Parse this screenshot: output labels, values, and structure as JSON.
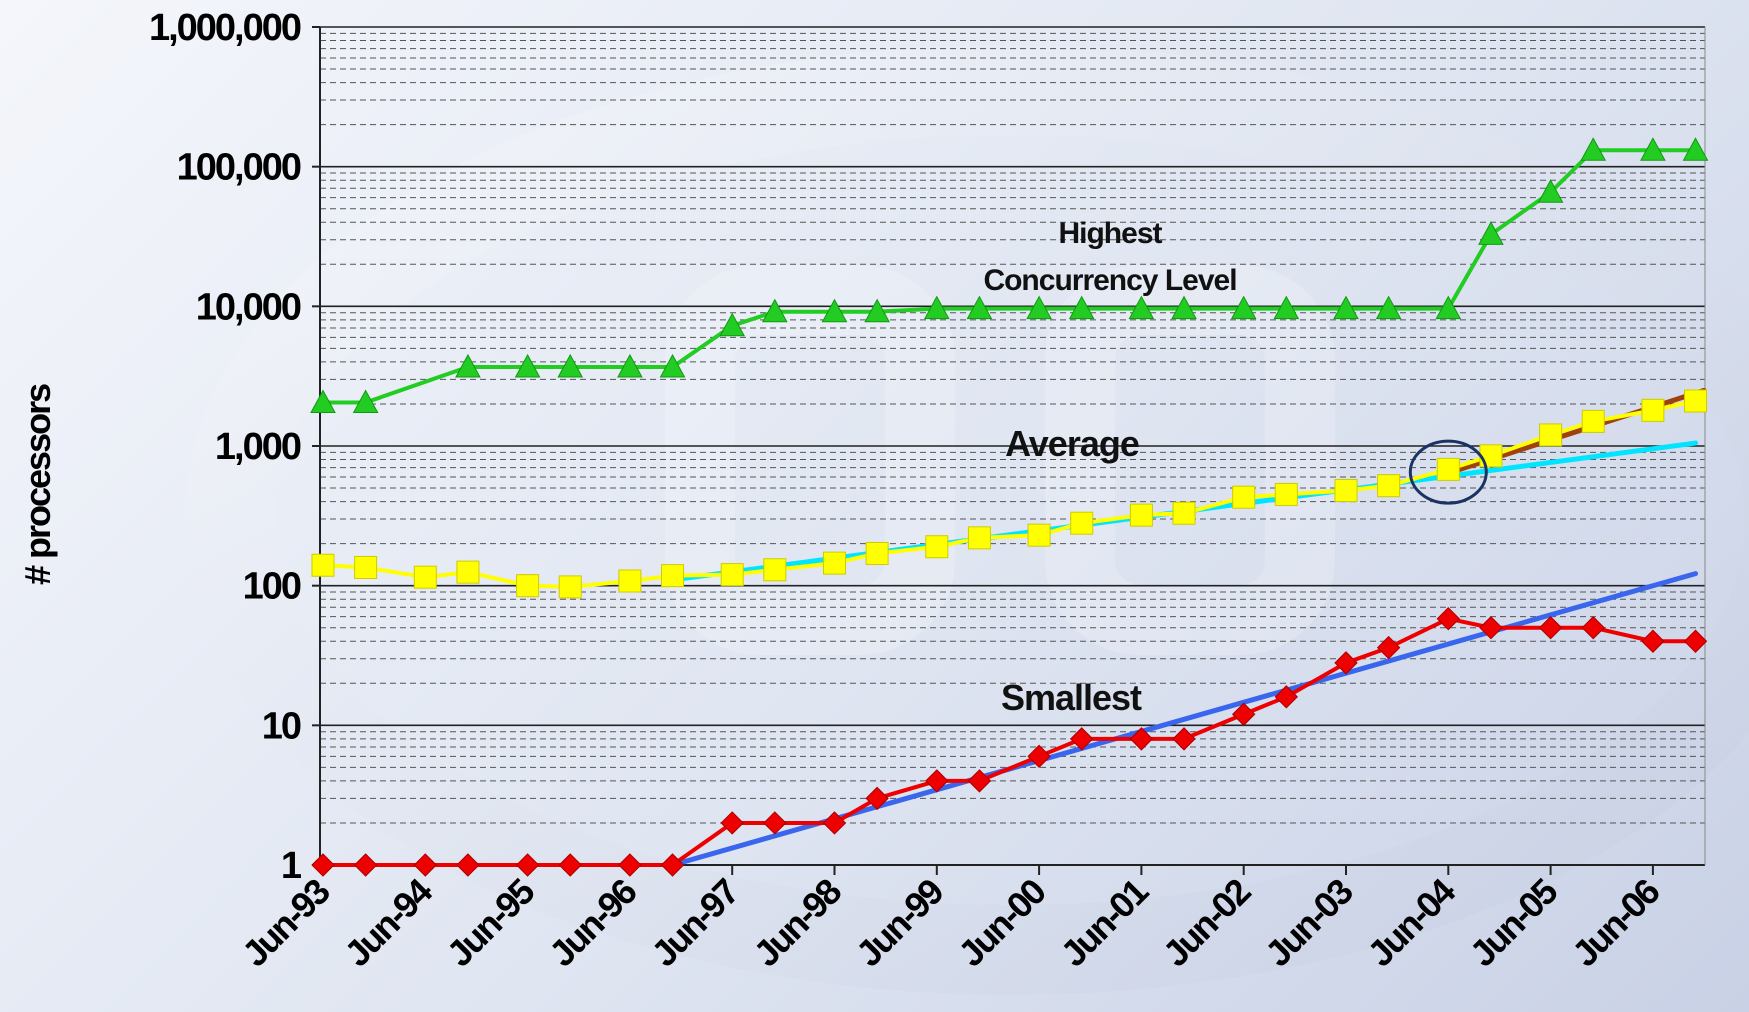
{
  "chart_data": {
    "type": "line",
    "ylabel": "# processors",
    "yscale": "log",
    "ylim": [
      1,
      1000000
    ],
    "xlim": [
      "Jun-93",
      "Dec-06"
    ],
    "yticks": [
      "1",
      "10",
      "100",
      "1,000",
      "10,000",
      "100,000",
      "1,000,000"
    ],
    "xticks": [
      "Jun-93",
      "Jun-94",
      "Jun-95",
      "Jun-96",
      "Jun-97",
      "Jun-98",
      "Jun-99",
      "Jun-00",
      "Jun-01",
      "Jun-02",
      "Jun-03",
      "Jun-04",
      "Jun-05",
      "Jun-06"
    ],
    "grid": "major and minor horizontal",
    "annotations": [
      "Highest",
      "Concurrency Level",
      "Average",
      "Smallest"
    ],
    "series": [
      {
        "label": "Highest Concurrency Level",
        "color": "#22cc22",
        "marker": "triangle",
        "x": [
          "Jun-93",
          "Nov-93",
          "Nov-94",
          "Jun-95",
          "Nov-95",
          "Jun-96",
          "Nov-96",
          "Jun-97",
          "Nov-97",
          "Jun-98",
          "Nov-98",
          "Jun-99",
          "Nov-99",
          "Jun-00",
          "Nov-00",
          "Jun-01",
          "Nov-01",
          "Jun-02",
          "Nov-02",
          "Jun-03",
          "Nov-03",
          "Jun-04",
          "Nov-04",
          "Jun-05",
          "Nov-05",
          "Jun-06",
          "Nov-06"
        ],
        "values": [
          2048,
          2048,
          3680,
          3680,
          3680,
          3680,
          3680,
          7264,
          9152,
          9152,
          9152,
          9632,
          9632,
          9632,
          9632,
          9632,
          9632,
          9632,
          9632,
          9632,
          9632,
          9632,
          32768,
          65536,
          131072,
          131072,
          131072
        ]
      },
      {
        "label": "Average",
        "color": "#ffff00",
        "marker": "square",
        "x": [
          "Jun-93",
          "Nov-93",
          "Jun-94",
          "Nov-94",
          "Jun-95",
          "Nov-95",
          "Jun-96",
          "Nov-96",
          "Jun-97",
          "Nov-97",
          "Jun-98",
          "Nov-98",
          "Jun-99",
          "Nov-99",
          "Jun-00",
          "Nov-00",
          "Jun-01",
          "Nov-01",
          "Jun-02",
          "Nov-02",
          "Jun-03",
          "Nov-03",
          "Jun-04",
          "Nov-04",
          "Jun-05",
          "Nov-05",
          "Jun-06",
          "Nov-06"
        ],
        "values": [
          140,
          135,
          115,
          125,
          100,
          98,
          108,
          118,
          120,
          130,
          145,
          170,
          190,
          220,
          230,
          280,
          320,
          330,
          430,
          450,
          480,
          520,
          680,
          850,
          1200,
          1500,
          1800,
          2100
        ]
      },
      {
        "label": "Smallest",
        "color": "#ee0000",
        "marker": "diamond",
        "x": [
          "Jun-93",
          "Nov-93",
          "Jun-94",
          "Nov-94",
          "Jun-95",
          "Nov-95",
          "Jun-96",
          "Nov-96",
          "Jun-97",
          "Nov-97",
          "Jun-98",
          "Nov-98",
          "Jun-99",
          "Nov-99",
          "Jun-00",
          "Nov-00",
          "Jun-01",
          "Nov-01",
          "Jun-02",
          "Nov-02",
          "Jun-03",
          "Nov-03",
          "Jun-04",
          "Nov-04",
          "Jun-05",
          "Nov-05",
          "Jun-06",
          "Nov-06"
        ],
        "values": [
          1,
          1,
          1,
          1,
          1,
          1,
          1,
          1,
          2,
          2,
          2,
          3,
          4,
          4,
          6,
          8,
          8,
          8,
          12,
          16,
          28,
          36,
          58,
          50,
          50,
          50,
          40,
          40
        ]
      }
    ],
    "trendlines": [
      {
        "color": "#00e5ff",
        "x": [
          "Nov-96",
          "Nov-06"
        ],
        "values": [
          110,
          1050
        ]
      },
      {
        "color": "#a0420a",
        "x": [
          "Jun-04",
          "Dec-06"
        ],
        "values": [
          640,
          2500
        ]
      },
      {
        "color": "#3a66ee",
        "x": [
          "Nov-96",
          "Nov-06"
        ],
        "values": [
          1,
          122
        ]
      }
    ],
    "circle_marker": {
      "x": "Jun-04",
      "value": 650,
      "color": "#1a3360"
    }
  }
}
